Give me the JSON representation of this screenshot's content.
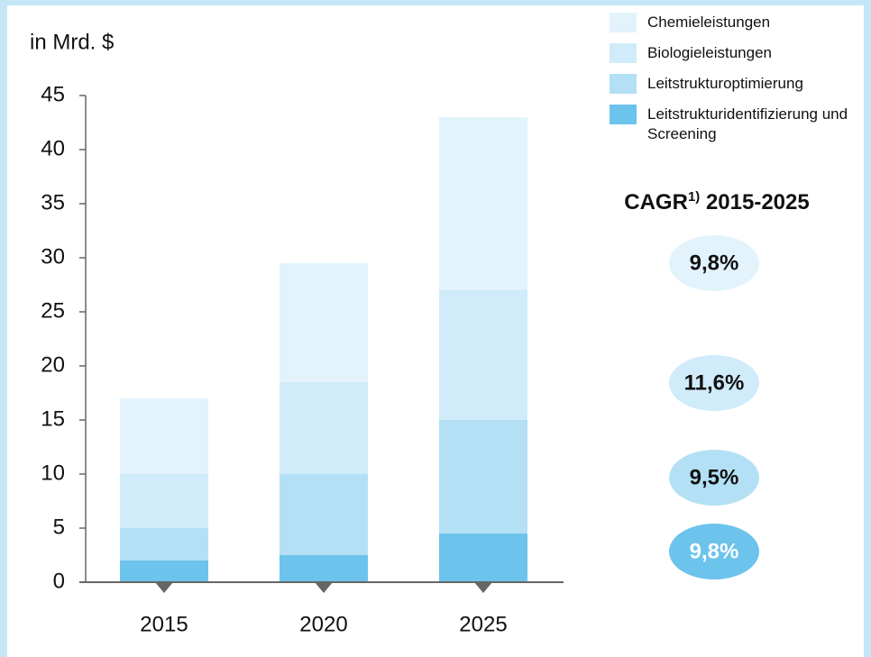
{
  "chart_data": {
    "type": "stacked_bar",
    "unit_label": "in Mrd. $",
    "categories": [
      "2015",
      "2020",
      "2025"
    ],
    "series": [
      {
        "name": "Leitstrukturidentifizierung und Screening",
        "color": "#6cc3ec",
        "values": [
          2,
          2.5,
          4.5
        ],
        "cagr": "9,8%"
      },
      {
        "name": "Leitstrukturoptimierung",
        "color": "#b3e0f5",
        "values": [
          3,
          7.5,
          10.5
        ],
        "cagr": "9,5%"
      },
      {
        "name": "Biologieleistungen",
        "color": "#d0ebf9",
        "values": [
          5,
          8.5,
          12
        ],
        "cagr": "11,6%"
      },
      {
        "name": "Chemieleistungen",
        "color": "#e3f3fc",
        "values": [
          7,
          11,
          16
        ],
        "cagr": "9,8%"
      }
    ],
    "cagr_title": {
      "main": "CAGR",
      "sup": "1)",
      "period": "2015-2025"
    },
    "ylim": [
      0,
      45
    ],
    "yticks": [
      0,
      5,
      10,
      15,
      20,
      25,
      30,
      35,
      40,
      45
    ]
  }
}
